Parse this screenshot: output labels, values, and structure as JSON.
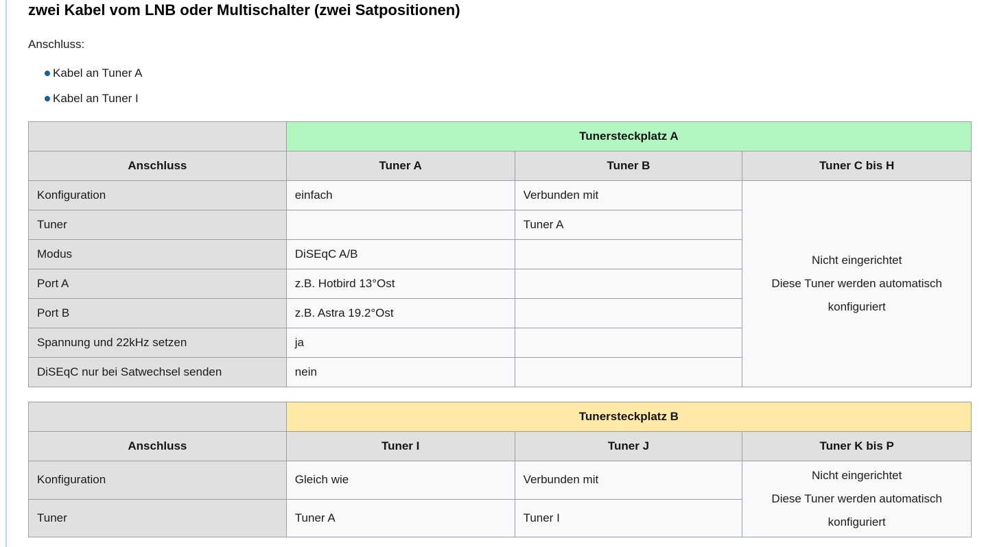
{
  "page": {
    "title": "zwei Kabel vom LNB oder Multischalter (zwei Satpositionen)",
    "intro_label": "Anschluss:",
    "bullets": [
      "Kabel an Tuner A",
      "Kabel an Tuner I"
    ]
  },
  "colors": {
    "banner_green": "#b3f6c2",
    "banner_yellow": "#ffe9a6",
    "header_gray": "#e0e0e0",
    "cell_bg": "#f8f9fa",
    "border_gray": "#9b9fa3",
    "bullet_blue": "#1d5d99",
    "left_rule_blue": "#b9d5ea"
  },
  "tables": [
    {
      "banner": "Tunersteckplatz A",
      "banner_color": "#b3f6c2",
      "columns": [
        "Anschluss",
        "Tuner A",
        "Tuner B",
        "Tuner C bis H"
      ],
      "rows": [
        {
          "label": "Konfiguration",
          "col1": "einfach",
          "col2": "Verbunden mit"
        },
        {
          "label": "Tuner",
          "col1": "",
          "col2": "Tuner A"
        },
        {
          "label": "Modus",
          "col1": "DiSEqC A/B",
          "col2": ""
        },
        {
          "label": "Port A",
          "col1": "z.B. Hotbird 13°Ost",
          "col2": ""
        },
        {
          "label": "Port B",
          "col1": "z.B. Astra 19.2°Ost",
          "col2": ""
        },
        {
          "label": "Spannung und 22kHz setzen",
          "col1": "ja",
          "col2": ""
        },
        {
          "label": "DiSEqC nur bei Satwechsel senden",
          "col1": "nein",
          "col2": ""
        }
      ],
      "span_cell_lines": [
        "Nicht eingerichtet",
        "Diese Tuner werden automatisch",
        "konfiguriert"
      ]
    },
    {
      "banner": "Tunersteckplatz B",
      "banner_color": "#ffe9a6",
      "columns": [
        "Anschluss",
        "Tuner I",
        "Tuner J",
        "Tuner K bis P"
      ],
      "rows": [
        {
          "label": "Konfiguration",
          "col1": "Gleich wie",
          "col2": "Verbunden mit"
        },
        {
          "label": "Tuner",
          "col1": "Tuner A",
          "col2": "Tuner I"
        }
      ],
      "span_cell_lines": [
        "Nicht eingerichtet",
        "Diese Tuner werden automatisch",
        "konfiguriert"
      ]
    }
  ]
}
